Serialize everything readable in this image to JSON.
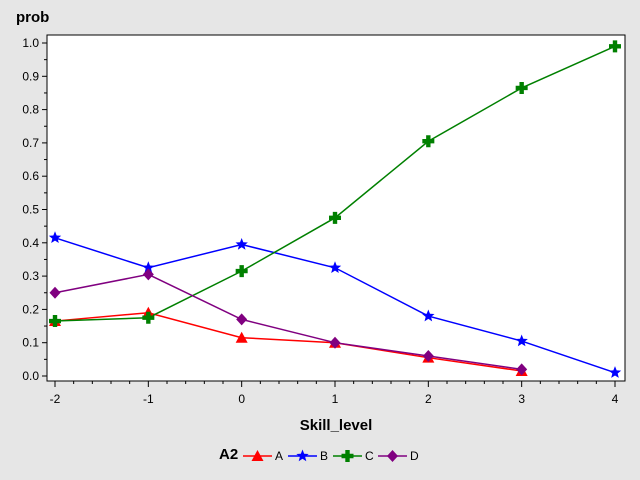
{
  "chart_data": {
    "type": "line",
    "ylabel": "prob",
    "xlabel": "Skill_level",
    "xlim": [
      -2,
      4
    ],
    "ylim": [
      0,
      1.0
    ],
    "x_ticks": [
      -2,
      -1,
      0,
      1,
      2,
      3,
      4
    ],
    "y_ticks": [
      0.0,
      0.1,
      0.2,
      0.3,
      0.4,
      0.5,
      0.6,
      0.7,
      0.8,
      0.9,
      1.0
    ],
    "grid": false,
    "legend": {
      "title": "A2",
      "placement": "bottom"
    },
    "series": [
      {
        "name": "A",
        "color": "#ff0000",
        "marker": "triangle",
        "x": [
          -2,
          -1,
          0,
          1,
          2,
          3
        ],
        "values": [
          0.165,
          0.19,
          0.115,
          0.1,
          0.055,
          0.015
        ]
      },
      {
        "name": "B",
        "color": "#0000ff",
        "marker": "star",
        "x": [
          -2,
          -1,
          0,
          1,
          2,
          3,
          4
        ],
        "values": [
          0.415,
          0.325,
          0.395,
          0.325,
          0.18,
          0.105,
          0.01
        ]
      },
      {
        "name": "C",
        "color": "#008000",
        "marker": "plus",
        "x": [
          -2,
          -1,
          0,
          1,
          2,
          3,
          4
        ],
        "values": [
          0.165,
          0.175,
          0.315,
          0.475,
          0.705,
          0.865,
          0.99
        ]
      },
      {
        "name": "D",
        "color": "#800080",
        "marker": "diamond",
        "x": [
          -2,
          -1,
          0,
          1,
          2,
          3
        ],
        "values": [
          0.25,
          0.305,
          0.17,
          0.1,
          0.06,
          0.02
        ]
      }
    ]
  }
}
